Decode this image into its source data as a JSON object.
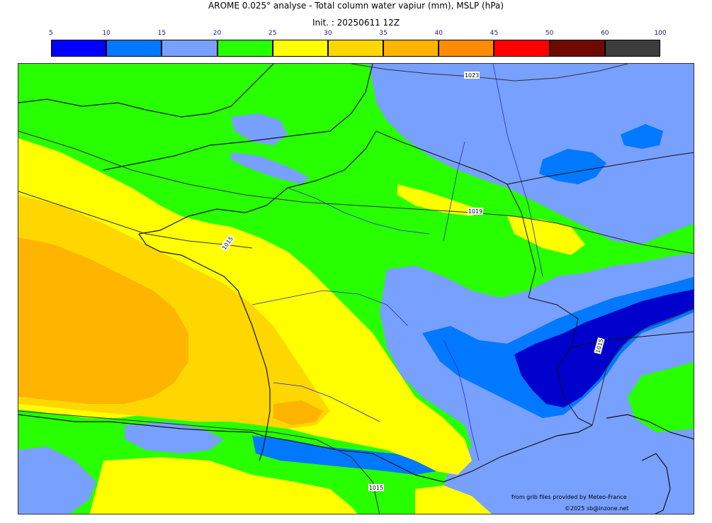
{
  "title": "AROME 0.025° analyse - Total column water vapiur (mm), MSLP (hPa)",
  "init": "Init. : 20250611 12Z",
  "colorbar": {
    "ticks": [
      "5",
      "10",
      "15",
      "20",
      "25",
      "30",
      "35",
      "40",
      "45",
      "50",
      "60",
      "100"
    ],
    "colors": [
      "#0000ff",
      "#0078ff",
      "#78a0ff",
      "#28ff00",
      "#ffff00",
      "#ffd700",
      "#ffb400",
      "#ff8c00",
      "#ff0000",
      "#6e0a00",
      "#3c3c3c"
    ]
  },
  "map": {
    "colors": {
      "green": "#28ff00",
      "light_blue": "#78a0ff",
      "mid_blue": "#0078ff",
      "deep_blue": "#0000cd",
      "yellow": "#ffff00",
      "gold": "#ffd700",
      "orange": "#ffb400",
      "isobar": "#333333",
      "coast": "#111111",
      "river": "#2a2ad0"
    },
    "isobar_labels": [
      "1023",
      "1019",
      "1015",
      "1015",
      "1015"
    ]
  },
  "credits": {
    "source": "from grib files provided by Meteo-France",
    "copyright": "©2025 sb@inzone.net"
  }
}
